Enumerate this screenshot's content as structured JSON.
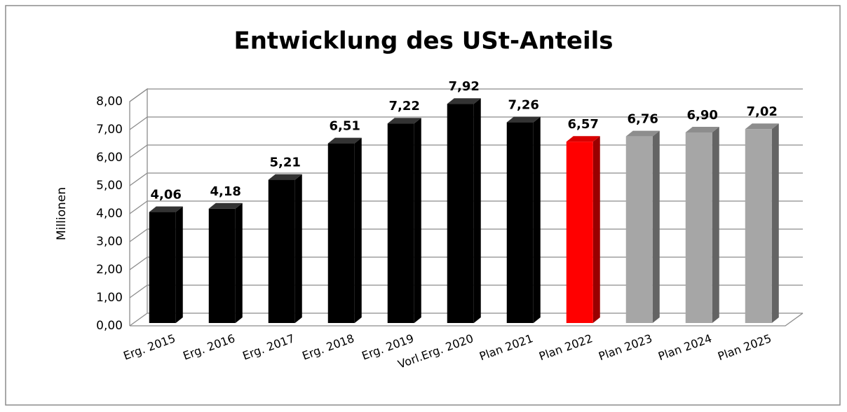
{
  "chart_data": {
    "type": "bar3d",
    "title": "Entwicklung des USt-Anteils",
    "y_label": "Millionen",
    "categories": [
      "Erg. 2015",
      "Erg. 2016",
      "Erg. 2017",
      "Erg. 2018",
      "Erg. 2019",
      "Vorl.Erg. 2020",
      "Plan 2021",
      "Plan 2022",
      "Plan 2023",
      "Plan 2024",
      "Plan 2025"
    ],
    "values": [
      4.06,
      4.18,
      5.21,
      6.51,
      7.22,
      7.92,
      7.26,
      6.57,
      6.76,
      6.9,
      7.02
    ],
    "value_labels": [
      "4,06",
      "4,18",
      "5,21",
      "6,51",
      "7,22",
      "7,92",
      "7,26",
      "6,57",
      "6,76",
      "6,90",
      "7,02"
    ],
    "colors": [
      "#000000",
      "#000000",
      "#000000",
      "#000000",
      "#000000",
      "#000000",
      "#000000",
      "#ff0000",
      "#a6a6a6",
      "#a6a6a6",
      "#a6a6a6"
    ],
    "ylim": [
      0,
      8
    ],
    "yticks": [
      {
        "value": 0,
        "label": "0,00"
      },
      {
        "value": 1,
        "label": "1,00"
      },
      {
        "value": 2,
        "label": "2,00"
      },
      {
        "value": 3,
        "label": "3,00"
      },
      {
        "value": 4,
        "label": "4,00"
      },
      {
        "value": 5,
        "label": "5,00"
      },
      {
        "value": 6,
        "label": "6,00"
      },
      {
        "value": 7,
        "label": "7,00"
      },
      {
        "value": 8,
        "label": "8,00"
      }
    ],
    "grid": true
  }
}
